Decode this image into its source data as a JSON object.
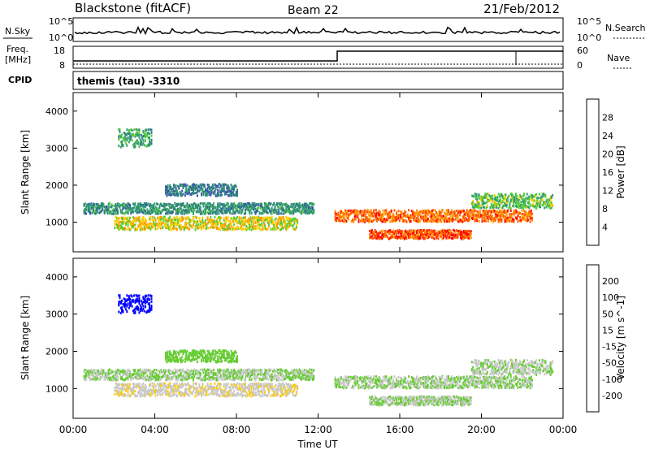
{
  "header": {
    "site": "Blackstone (fitACF)",
    "beam": "Beam 22",
    "date": "21/Feb/2012"
  },
  "noise_panel": {
    "left_label": "N.Sky",
    "right_label": "N.Search",
    "top_tick": "10^5",
    "bottom_tick": "10^0"
  },
  "freq_panel": {
    "left_label_1": "Freq.",
    "left_label_2": "[MHz]",
    "left_ticks": [
      "18",
      "8"
    ],
    "right_label": "Nave",
    "right_ticks": [
      "60",
      "0"
    ]
  },
  "cpid": {
    "label": "CPID",
    "value": "themis (tau) -3310"
  },
  "x_axis": {
    "label": "Time UT",
    "ticks": [
      "00:00",
      "04:00",
      "08:00",
      "12:00",
      "16:00",
      "20:00",
      "00:00"
    ]
  },
  "chart_data": [
    {
      "type": "heatmap",
      "title": "",
      "xlabel": "Time UT",
      "ylabel": "Slant Range [km]",
      "xlim": [
        0,
        24
      ],
      "ylim": [
        200,
        4500
      ],
      "y_ticks": [
        "4000",
        "3000",
        "2000",
        "1000"
      ],
      "colorbar": {
        "label": "Power [dB]",
        "ticks": [
          "28",
          "24",
          "20",
          "16",
          "12",
          "8",
          "4"
        ],
        "range": [
          0,
          30
        ],
        "colors": [
          "#0000ff",
          "#3b4fb5",
          "#2f7f7f",
          "#33a070",
          "#55cc33",
          "#ffcc00",
          "#ff9900",
          "#ff5500",
          "#ff0000"
        ]
      },
      "series": [
        {
          "start_hr": 0.5,
          "end_hr": 11.8,
          "center_km": 1400,
          "thick_km": 180,
          "power_db": 10
        },
        {
          "start_hr": 2.0,
          "end_hr": 11.0,
          "center_km": 1000,
          "thick_km": 220,
          "power_db": 18
        },
        {
          "start_hr": 4.5,
          "end_hr": 8.0,
          "center_km": 1900,
          "thick_km": 200,
          "power_db": 8
        },
        {
          "start_hr": 2.2,
          "end_hr": 3.8,
          "center_km": 3300,
          "thick_km": 300,
          "power_db": 12
        },
        {
          "start_hr": 12.8,
          "end_hr": 22.5,
          "center_km": 1200,
          "thick_km": 200,
          "power_db": 24
        },
        {
          "start_hr": 14.5,
          "end_hr": 19.5,
          "center_km": 700,
          "thick_km": 150,
          "power_db": 26
        },
        {
          "start_hr": 19.5,
          "end_hr": 23.5,
          "center_km": 1600,
          "thick_km": 250,
          "power_db": 14
        }
      ]
    },
    {
      "type": "heatmap",
      "title": "",
      "xlabel": "Time UT",
      "ylabel": "Slant Range [km]",
      "xlim": [
        0,
        24
      ],
      "ylim": [
        200,
        4500
      ],
      "y_ticks": [
        "4000",
        "3000",
        "2000",
        "1000"
      ],
      "colorbar": {
        "label": "Velocity [m s^-1]",
        "ticks": [
          "200",
          "100",
          "50",
          "15",
          "-15",
          "-50",
          "-100",
          "-200"
        ],
        "range": [
          -250,
          250
        ],
        "colors": [
          "#ff0000",
          "#ff6600",
          "#ff9900",
          "#ffcc00",
          "#c8c8c8",
          "#66cc33",
          "#33aa33",
          "#2f7f7f",
          "#3b4fb5",
          "#0000ff"
        ]
      },
      "series": [
        {
          "start_hr": 0.5,
          "end_hr": 11.8,
          "center_km": 1400,
          "thick_km": 180,
          "velocity": 0
        },
        {
          "start_hr": 2.0,
          "end_hr": 11.0,
          "center_km": 1000,
          "thick_km": 220,
          "velocity": -40
        },
        {
          "start_hr": 4.5,
          "end_hr": 8.0,
          "center_km": 1900,
          "thick_km": 200,
          "velocity": 20
        },
        {
          "start_hr": 2.2,
          "end_hr": 3.8,
          "center_km": 3300,
          "thick_km": 300,
          "velocity": 220
        },
        {
          "start_hr": 12.8,
          "end_hr": 22.5,
          "center_km": 1200,
          "thick_km": 200,
          "velocity": 0
        },
        {
          "start_hr": 14.5,
          "end_hr": 19.5,
          "center_km": 700,
          "thick_km": 150,
          "velocity": 0
        },
        {
          "start_hr": 19.5,
          "end_hr": 23.5,
          "center_km": 1600,
          "thick_km": 250,
          "velocity": -5
        }
      ]
    }
  ]
}
